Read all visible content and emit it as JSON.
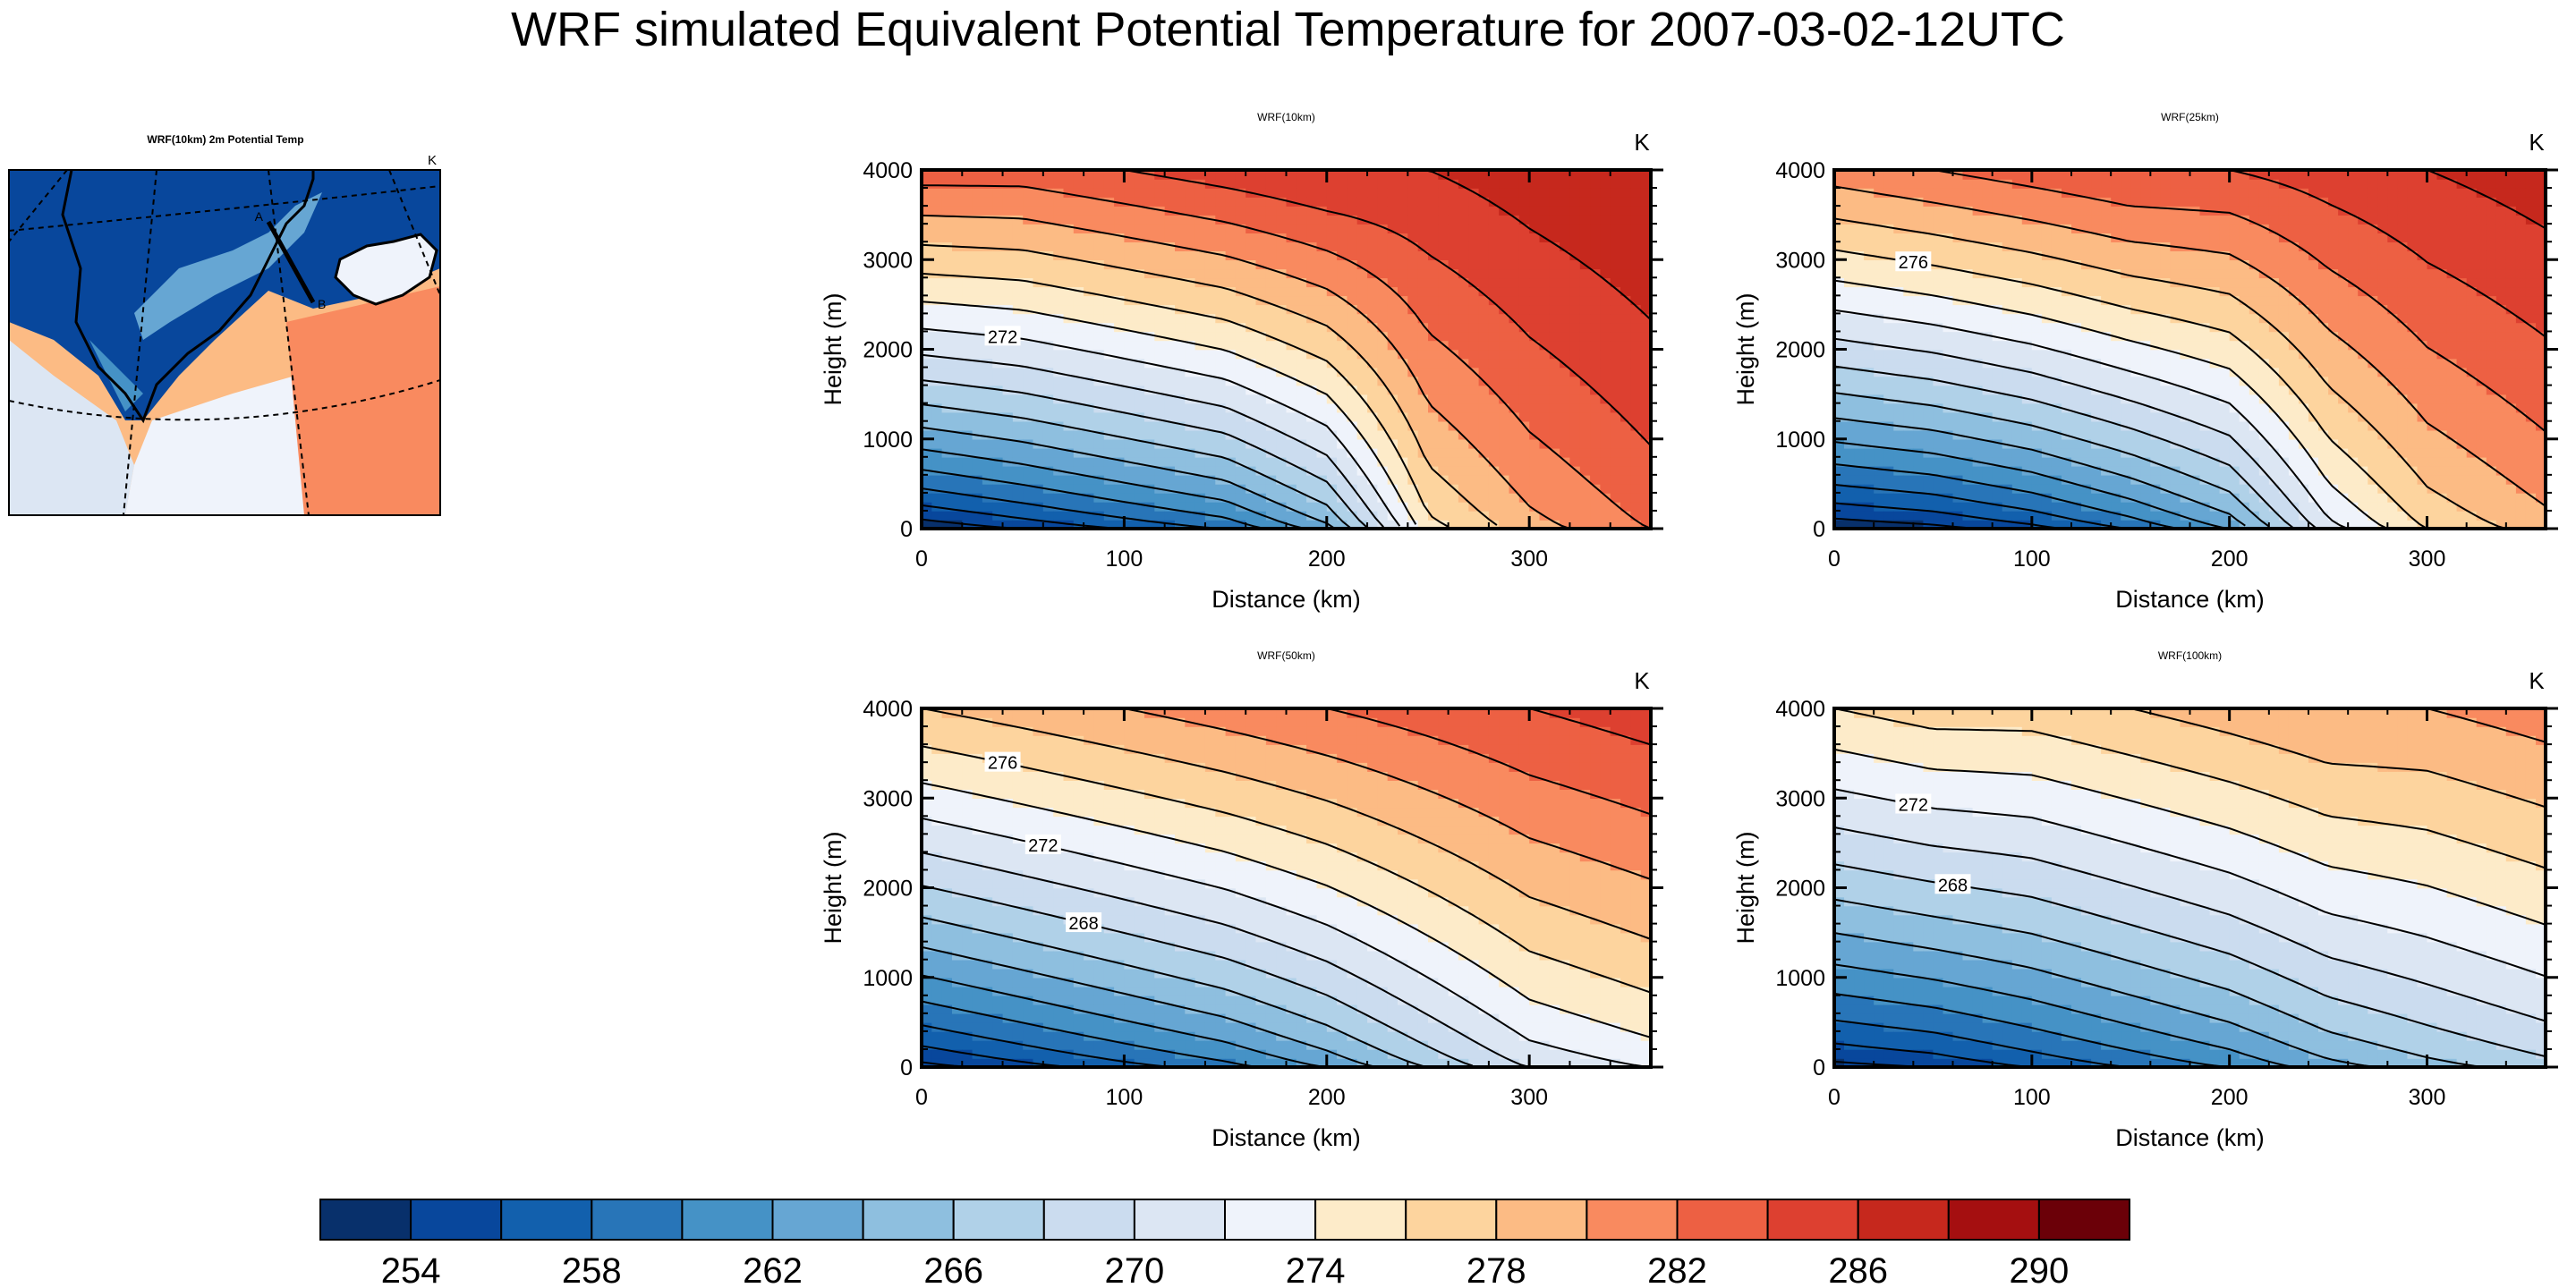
{
  "title": "WRF simulated Equivalent Potential Temperature for 2007-03-02-12UTC",
  "map_panel": {
    "title": "WRF(10km) 2m Potential Temp",
    "units": "K",
    "section_start_label": "A",
    "section_end_label": "B"
  },
  "colorbar": {
    "ticks": [
      "254",
      "258",
      "262",
      "266",
      "270",
      "274",
      "278",
      "282",
      "286",
      "290"
    ],
    "colors": [
      "#08306b",
      "#08479c",
      "#1260ad",
      "#2875b8",
      "#4592c6",
      "#66a6d3",
      "#8ebfdf",
      "#b0d1e8",
      "#cbdcef",
      "#dce6f3",
      "#eff3fb",
      "#fdebc9",
      "#fdd49e",
      "#fcbb84",
      "#f98a5f",
      "#ed6043",
      "#dd4030",
      "#c6281d",
      "#a50f10",
      "#6b0008"
    ]
  },
  "chart_data": [
    {
      "type": "contour",
      "title": "WRF(10km)",
      "units": "K",
      "xlabel": "Distance (km)",
      "ylabel": "Height (m)",
      "xlim": [
        0,
        360
      ],
      "ylim": [
        0,
        4000
      ],
      "xticks": [
        "0",
        "100",
        "200",
        "300"
      ],
      "yticks": [
        "0",
        "1000",
        "2000",
        "3000",
        "4000"
      ],
      "contour_labels": [
        "272"
      ],
      "surface_theta": [
        252,
        254,
        256,
        258,
        263,
        275,
        279,
        282
      ],
      "theta_4000": [
        283,
        283,
        284,
        285,
        286,
        286,
        287,
        288
      ],
      "grid_x": [
        0,
        50,
        100,
        150,
        200,
        250,
        300,
        360
      ]
    },
    {
      "type": "contour",
      "title": "WRF(25km)",
      "units": "K",
      "xlabel": "Distance (km)",
      "ylabel": "Height (m)",
      "xlim": [
        0,
        360
      ],
      "ylim": [
        0,
        4000
      ],
      "xticks": [
        "0",
        "100",
        "200",
        "300"
      ],
      "yticks": [
        "0",
        "1000",
        "2000",
        "3000",
        "4000"
      ],
      "contour_labels": [
        "276"
      ],
      "surface_theta": [
        252,
        253,
        255,
        258,
        262,
        271,
        276,
        279
      ],
      "theta_4000": [
        281,
        282,
        283,
        284,
        284,
        285,
        286,
        287
      ],
      "grid_x": [
        0,
        50,
        100,
        150,
        200,
        250,
        300,
        360
      ]
    },
    {
      "type": "contour",
      "title": "WRF(50km)",
      "units": "K",
      "xlabel": "Distance (km)",
      "ylabel": "Height (m)",
      "xlim": [
        0,
        360
      ],
      "ylim": [
        0,
        4000
      ],
      "xticks": [
        "0",
        "100",
        "200",
        "300"
      ],
      "yticks": [
        "0",
        "1000",
        "2000",
        "3000",
        "4000"
      ],
      "contour_labels": [
        "276",
        "272",
        "268"
      ],
      "surface_theta": [
        253,
        255,
        257,
        259,
        262,
        266,
        270,
        272
      ],
      "theta_4000": [
        278,
        279,
        280,
        281,
        282,
        283,
        284,
        285
      ],
      "grid_x": [
        0,
        50,
        100,
        150,
        200,
        250,
        300,
        360
      ]
    },
    {
      "type": "contour",
      "title": "WRF(100km)",
      "units": "K",
      "xlabel": "Distance (km)",
      "ylabel": "Height (m)",
      "xlim": [
        0,
        360
      ],
      "ylim": [
        0,
        4000
      ],
      "xticks": [
        "0",
        "100",
        "200",
        "300"
      ],
      "yticks": [
        "0",
        "1000",
        "2000",
        "3000",
        "4000"
      ],
      "contour_labels": [
        "272",
        "268"
      ],
      "surface_theta": [
        253,
        254,
        256,
        258,
        260,
        263,
        265,
        267
      ],
      "theta_4000": [
        276,
        277,
        277,
        278,
        279,
        280,
        280,
        281
      ],
      "grid_x": [
        0,
        50,
        100,
        150,
        200,
        250,
        300,
        360
      ]
    }
  ]
}
